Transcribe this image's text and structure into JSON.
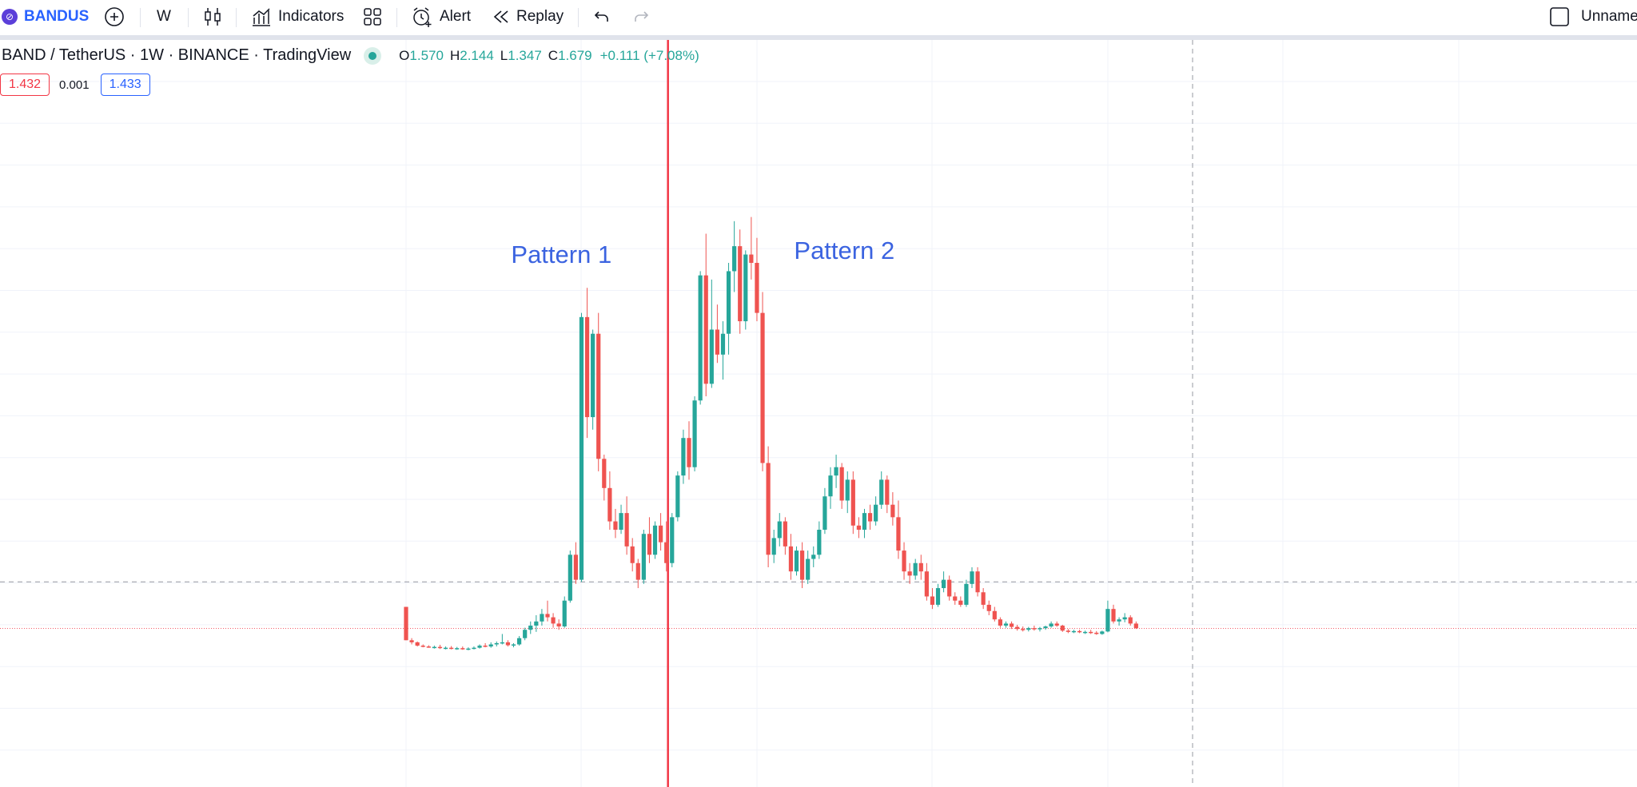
{
  "toolbar": {
    "symbol": "BANDUS",
    "interval": "W",
    "indicators_label": "Indicators",
    "alert_label": "Alert",
    "replay_label": "Replay",
    "layout_name": "Unnamed",
    "icons": [
      "symbol-logo-icon",
      "add-symbol-icon",
      "candles-icon",
      "indicators-icon",
      "layouts-grid-icon",
      "alarm-clock-icon",
      "rewind-icon",
      "undo-icon",
      "redo-icon",
      "layout-checkbox-icon"
    ]
  },
  "legend": {
    "title": "BAND / TetherUS · 1W · BINANCE · TradingView",
    "ohlc": {
      "o_key": "O",
      "o": "1.570",
      "h_key": "H",
      "h": "2.144",
      "l_key": "L",
      "l": "1.347",
      "c_key": "C",
      "c": "1.679",
      "change": "+0.111 (+7.08%)"
    }
  },
  "quote": {
    "bid": "1.432",
    "spread": "0.001",
    "ask": "1.433"
  },
  "annotations": {
    "pattern1": "Pattern 1",
    "pattern2": "Pattern 2"
  },
  "colors": {
    "up": "#26a69a",
    "down": "#ef5350",
    "accent": "#2962ff",
    "marker": "#f23645",
    "annotation": "#3b63e0"
  },
  "chart_data": {
    "type": "candlestick",
    "x_unit": "week index",
    "y_unit": "USDT",
    "price_line": 1.433,
    "crosshair_price": 2.55,
    "divider_at_index": 46,
    "annotations": [
      {
        "text_key": "pattern1",
        "at_index": 30,
        "price": 10.2
      },
      {
        "text_key": "pattern2",
        "at_index": 80,
        "price": 10.3
      }
    ],
    "candles": [
      [
        1.95,
        1.95,
        1.15,
        1.15
      ],
      [
        1.15,
        1.2,
        1.05,
        1.1
      ],
      [
        1.1,
        1.12,
        1.0,
        1.02
      ],
      [
        1.02,
        1.05,
        0.98,
        1.0
      ],
      [
        1.0,
        1.03,
        0.97,
        0.98
      ],
      [
        0.98,
        1.02,
        0.95,
        0.99
      ],
      [
        0.99,
        1.04,
        0.94,
        0.96
      ],
      [
        0.96,
        1.0,
        0.93,
        0.97
      ],
      [
        0.97,
        1.01,
        0.93,
        0.95
      ],
      [
        0.95,
        0.99,
        0.92,
        0.96
      ],
      [
        0.96,
        1.0,
        0.92,
        0.94
      ],
      [
        0.94,
        0.98,
        0.91,
        0.95
      ],
      [
        0.95,
        1.0,
        0.93,
        0.97
      ],
      [
        0.97,
        1.05,
        0.95,
        1.02
      ],
      [
        1.02,
        1.08,
        0.98,
        1.0
      ],
      [
        1.0,
        1.1,
        0.97,
        1.05
      ],
      [
        1.05,
        1.12,
        1.0,
        1.08
      ],
      [
        1.08,
        1.3,
        1.05,
        1.1
      ],
      [
        1.1,
        1.15,
        1.0,
        1.03
      ],
      [
        1.03,
        1.08,
        0.98,
        1.05
      ],
      [
        1.05,
        1.25,
        1.02,
        1.2
      ],
      [
        1.2,
        1.45,
        1.15,
        1.4
      ],
      [
        1.4,
        1.6,
        1.3,
        1.5
      ],
      [
        1.5,
        1.75,
        1.35,
        1.6
      ],
      [
        1.6,
        1.9,
        1.5,
        1.78
      ],
      [
        1.78,
        2.1,
        1.6,
        1.7
      ],
      [
        1.7,
        1.8,
        1.45,
        1.55
      ],
      [
        1.55,
        1.65,
        1.4,
        1.48
      ],
      [
        1.48,
        2.2,
        1.45,
        2.1
      ],
      [
        2.1,
        3.3,
        2.05,
        3.2
      ],
      [
        3.2,
        3.5,
        2.5,
        2.6
      ],
      [
        2.6,
        9.0,
        2.55,
        8.9
      ],
      [
        8.9,
        9.6,
        6.0,
        6.5
      ],
      [
        6.5,
        8.6,
        6.2,
        8.5
      ],
      [
        8.5,
        9.0,
        5.2,
        5.5
      ],
      [
        5.5,
        5.6,
        4.5,
        4.8
      ],
      [
        4.8,
        5.2,
        3.8,
        4.0
      ],
      [
        4.0,
        4.3,
        3.6,
        3.8
      ],
      [
        3.8,
        4.4,
        3.7,
        4.2
      ],
      [
        4.2,
        4.6,
        3.2,
        3.4
      ],
      [
        3.4,
        3.6,
        2.8,
        3.0
      ],
      [
        3.0,
        3.1,
        2.4,
        2.6
      ],
      [
        2.6,
        3.8,
        2.5,
        3.7
      ],
      [
        3.7,
        4.1,
        3.0,
        3.2
      ],
      [
        3.2,
        4.0,
        3.1,
        3.9
      ],
      [
        3.9,
        4.2,
        3.3,
        3.5
      ],
      [
        3.5,
        4.0,
        2.8,
        3.0
      ],
      [
        3.0,
        4.2,
        2.9,
        4.1
      ],
      [
        4.1,
        5.2,
        4.0,
        5.1
      ],
      [
        5.1,
        6.2,
        4.9,
        6.0
      ],
      [
        6.0,
        6.4,
        5.0,
        5.3
      ],
      [
        5.3,
        7.0,
        5.2,
        6.9
      ],
      [
        6.9,
        10.0,
        6.8,
        9.9
      ],
      [
        9.9,
        10.9,
        7.0,
        7.3
      ],
      [
        7.3,
        9.8,
        7.2,
        8.6
      ],
      [
        8.6,
        9.2,
        7.8,
        8.0
      ],
      [
        8.0,
        8.8,
        7.4,
        8.5
      ],
      [
        8.5,
        10.2,
        8.0,
        10.0
      ],
      [
        10.0,
        11.2,
        9.5,
        10.6
      ],
      [
        10.6,
        11.0,
        8.5,
        8.8
      ],
      [
        8.8,
        10.5,
        8.6,
        10.4
      ],
      [
        10.4,
        11.3,
        9.8,
        10.2
      ],
      [
        10.2,
        10.8,
        8.8,
        9.0
      ],
      [
        9.0,
        9.5,
        5.2,
        5.4
      ],
      [
        5.4,
        5.8,
        2.9,
        3.2
      ],
      [
        3.2,
        3.8,
        3.0,
        3.6
      ],
      [
        3.6,
        4.2,
        3.4,
        4.0
      ],
      [
        4.0,
        4.1,
        3.2,
        3.4
      ],
      [
        3.4,
        3.7,
        2.6,
        2.8
      ],
      [
        2.8,
        3.4,
        2.7,
        3.3
      ],
      [
        3.3,
        3.5,
        2.4,
        2.6
      ],
      [
        2.6,
        3.3,
        2.5,
        3.1
      ],
      [
        3.1,
        3.4,
        2.9,
        3.2
      ],
      [
        3.2,
        4.0,
        3.1,
        3.8
      ],
      [
        3.8,
        4.8,
        3.7,
        4.6
      ],
      [
        4.6,
        5.3,
        4.3,
        5.1
      ],
      [
        5.1,
        5.6,
        4.8,
        5.3
      ],
      [
        5.3,
        5.4,
        4.3,
        4.5
      ],
      [
        4.5,
        5.2,
        4.2,
        5.0
      ],
      [
        5.0,
        5.2,
        3.7,
        3.9
      ],
      [
        3.9,
        4.1,
        3.6,
        3.8
      ],
      [
        3.8,
        4.3,
        3.6,
        4.2
      ],
      [
        4.2,
        4.4,
        3.8,
        4.0
      ],
      [
        4.0,
        4.6,
        3.9,
        4.4
      ],
      [
        4.4,
        5.2,
        4.3,
        5.0
      ],
      [
        5.0,
        5.1,
        4.2,
        4.4
      ],
      [
        4.4,
        4.7,
        3.9,
        4.1
      ],
      [
        4.1,
        4.5,
        3.1,
        3.3
      ],
      [
        3.3,
        3.5,
        2.6,
        2.8
      ],
      [
        2.8,
        3.0,
        2.5,
        2.7
      ],
      [
        2.7,
        3.1,
        2.6,
        3.0
      ],
      [
        3.0,
        3.2,
        2.6,
        2.8
      ],
      [
        2.8,
        3.0,
        2.1,
        2.2
      ],
      [
        2.2,
        2.4,
        1.9,
        2.0
      ],
      [
        2.0,
        2.5,
        1.95,
        2.4
      ],
      [
        2.4,
        2.8,
        2.3,
        2.6
      ],
      [
        2.6,
        2.7,
        2.1,
        2.2
      ],
      [
        2.2,
        2.3,
        2.0,
        2.1
      ],
      [
        2.1,
        2.2,
        1.95,
        2.0
      ],
      [
        2.0,
        2.6,
        1.95,
        2.5
      ],
      [
        2.5,
        2.9,
        2.4,
        2.8
      ],
      [
        2.8,
        2.9,
        2.2,
        2.3
      ],
      [
        2.3,
        2.4,
        1.9,
        2.0
      ],
      [
        2.0,
        2.1,
        1.75,
        1.85
      ],
      [
        1.85,
        1.95,
        1.6,
        1.65
      ],
      [
        1.65,
        1.7,
        1.45,
        1.5
      ],
      [
        1.5,
        1.6,
        1.45,
        1.55
      ],
      [
        1.55,
        1.6,
        1.42,
        1.47
      ],
      [
        1.47,
        1.52,
        1.38,
        1.42
      ],
      [
        1.42,
        1.48,
        1.36,
        1.4
      ],
      [
        1.4,
        1.47,
        1.36,
        1.44
      ],
      [
        1.44,
        1.5,
        1.38,
        1.42
      ],
      [
        1.42,
        1.47,
        1.36,
        1.44
      ],
      [
        1.44,
        1.5,
        1.4,
        1.48
      ],
      [
        1.48,
        1.6,
        1.45,
        1.55
      ],
      [
        1.55,
        1.6,
        1.47,
        1.5
      ],
      [
        1.5,
        1.52,
        1.35,
        1.38
      ],
      [
        1.38,
        1.42,
        1.32,
        1.35
      ],
      [
        1.35,
        1.4,
        1.32,
        1.37
      ],
      [
        1.37,
        1.4,
        1.32,
        1.34
      ],
      [
        1.34,
        1.38,
        1.3,
        1.35
      ],
      [
        1.35,
        1.4,
        1.3,
        1.33
      ],
      [
        1.33,
        1.37,
        1.28,
        1.3
      ],
      [
        1.3,
        1.38,
        1.28,
        1.36
      ],
      [
        1.36,
        2.1,
        1.34,
        1.9
      ],
      [
        1.9,
        2.0,
        1.55,
        1.6
      ],
      [
        1.6,
        1.7,
        1.5,
        1.65
      ],
      [
        1.65,
        1.8,
        1.58,
        1.7
      ],
      [
        1.7,
        1.75,
        1.5,
        1.55
      ],
      [
        1.55,
        1.6,
        1.42,
        1.44
      ]
    ]
  }
}
